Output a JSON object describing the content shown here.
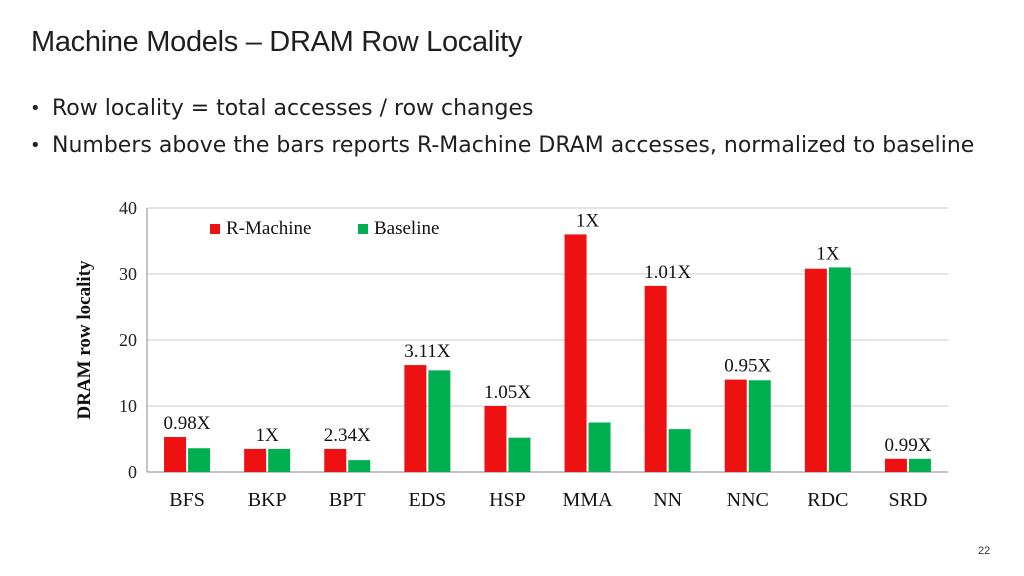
{
  "slide": {
    "title": "Machine Models – DRAM Row Locality",
    "bullets": [
      "Row locality = total accesses / row changes",
      "Numbers above the bars reports R-Machine DRAM accesses, normalized to baseline"
    ],
    "page_number": "22"
  },
  "colors": {
    "r_machine": "#ee1111",
    "baseline": "#00b050",
    "grid": "#c8c8c8"
  },
  "chart_data": {
    "type": "bar",
    "title": "",
    "xlabel": "",
    "ylabel": "DRAM row locality",
    "ylim": [
      0,
      40
    ],
    "yticks": [
      0,
      10,
      20,
      30,
      40
    ],
    "grid": true,
    "legend_position": "top-left",
    "categories": [
      "BFS",
      "BKP",
      "BPT",
      "EDS",
      "HSP",
      "MMA",
      "NN",
      "NNC",
      "RDC",
      "SRD"
    ],
    "series": [
      {
        "name": "R-Machine",
        "values": [
          5.3,
          3.5,
          3.5,
          16.2,
          10.0,
          36.0,
          28.2,
          14.0,
          30.8,
          2.0
        ]
      },
      {
        "name": "Baseline",
        "values": [
          3.6,
          3.5,
          1.8,
          15.4,
          5.2,
          7.5,
          6.5,
          13.9,
          31.0,
          2.0
        ]
      }
    ],
    "annotations": [
      "0.98X",
      "1X",
      "2.34X",
      "3.11X",
      "1.05X",
      "1X",
      "1.01X",
      "0.95X",
      "1X",
      "0.99X"
    ]
  }
}
